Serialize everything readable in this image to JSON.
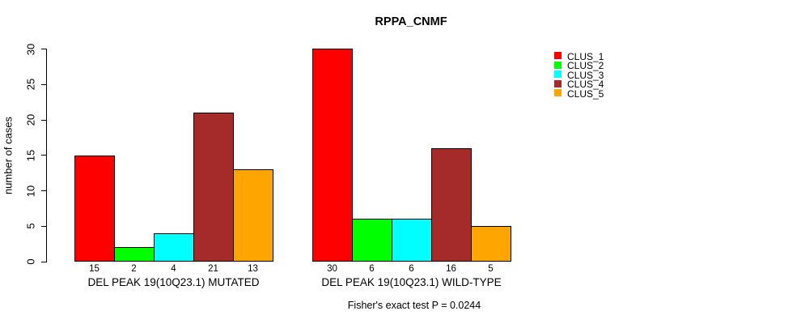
{
  "chart_data": {
    "type": "bar",
    "title": "RPPA_CNMF",
    "ylabel": "number of cases",
    "xlabel": "",
    "ylim": [
      0,
      30
    ],
    "yticks": [
      0,
      5,
      10,
      15,
      20,
      25,
      30
    ],
    "grid": false,
    "series": [
      "CLUS_1",
      "CLUS_2",
      "CLUS_3",
      "CLUS_4",
      "CLUS_5"
    ],
    "series_colors": [
      "#FF0000",
      "#00FF00",
      "#00FFFF",
      "#A52A2A",
      "#FFA500"
    ],
    "categories": [
      "DEL PEAK 19(10Q23.1) MUTATED",
      "DEL PEAK 19(10Q23.1) WILD-TYPE"
    ],
    "groups": [
      {
        "label": "DEL PEAK 19(10Q23.1) MUTATED",
        "values": [
          15,
          2,
          4,
          21,
          13
        ]
      },
      {
        "label": "DEL PEAK 19(10Q23.1) WILD-TYPE",
        "values": [
          30,
          6,
          6,
          16,
          5
        ]
      }
    ],
    "value_labels_shown": true,
    "legend": {
      "position": "right",
      "entries": [
        {
          "label": "CLUS_1",
          "color": "#FF0000"
        },
        {
          "label": "CLUS_2",
          "color": "#00FF00"
        },
        {
          "label": "CLUS_3",
          "color": "#00FFFF"
        },
        {
          "label": "CLUS_4",
          "color": "#A52A2A"
        },
        {
          "label": "CLUS_5",
          "color": "#FFA500"
        }
      ]
    },
    "footnote": "Fisher's exact test P = 0.0244"
  }
}
